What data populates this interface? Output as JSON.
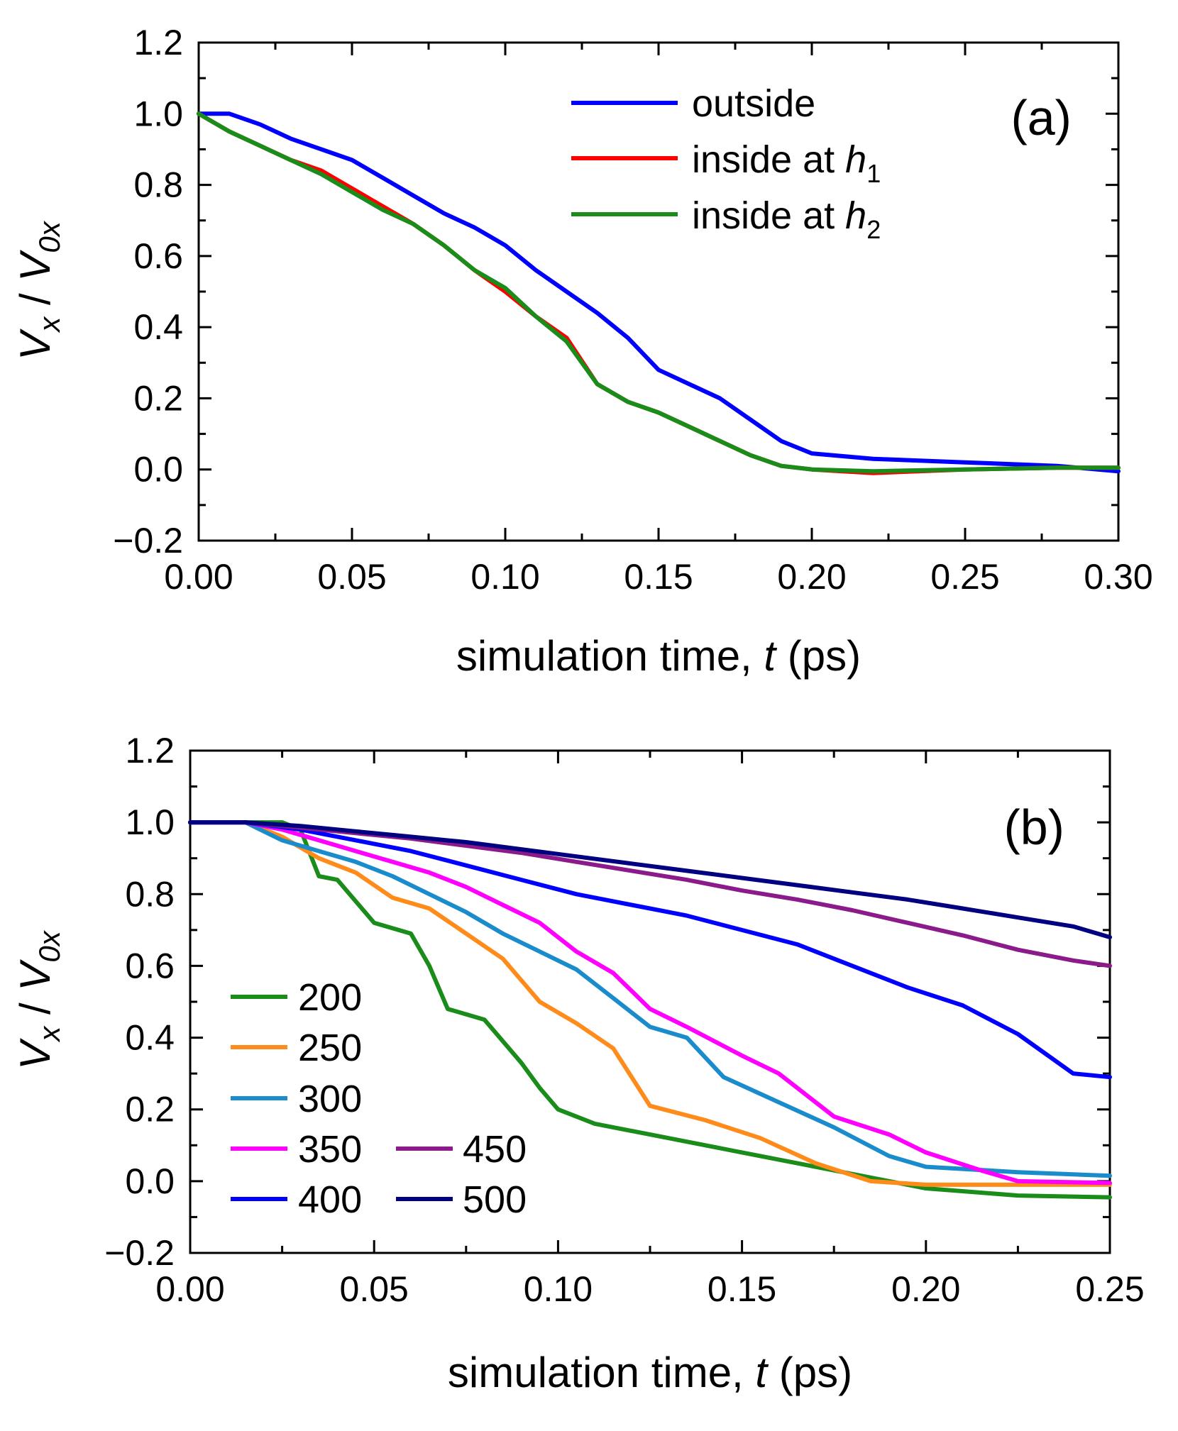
{
  "chart_data": [
    {
      "panel": "(a)",
      "type": "line",
      "xlabel_text": "simulation time, ",
      "xlabel_var": "t",
      "xlabel_unit": " (ps)",
      "ylabel": "Vx / V0x",
      "xlim": [
        0,
        0.3
      ],
      "ylim": [
        -0.2,
        1.2
      ],
      "xticks": [
        "0.00",
        "0.05",
        "0.10",
        "0.15",
        "0.20",
        "0.25",
        "0.30"
      ],
      "yticks": [
        "−0.2",
        "0.0",
        "0.2",
        "0.4",
        "0.6",
        "0.8",
        "1.0",
        "1.2"
      ],
      "legend_position": "top-right",
      "series": [
        {
          "name": "outside",
          "legend_text": "outside",
          "legend_var": "",
          "legend_sub": "",
          "color": "#0000ff",
          "x": [
            0,
            0.01,
            0.02,
            0.03,
            0.04,
            0.05,
            0.06,
            0.07,
            0.08,
            0.09,
            0.1,
            0.11,
            0.12,
            0.13,
            0.14,
            0.15,
            0.16,
            0.17,
            0.18,
            0.19,
            0.2,
            0.22,
            0.25,
            0.28,
            0.3
          ],
          "y": [
            1.0,
            1.0,
            0.97,
            0.93,
            0.9,
            0.87,
            0.82,
            0.77,
            0.72,
            0.68,
            0.63,
            0.56,
            0.5,
            0.44,
            0.37,
            0.28,
            0.24,
            0.2,
            0.14,
            0.08,
            0.045,
            0.03,
            0.02,
            0.01,
            -0.005
          ]
        },
        {
          "name": "inside at h1",
          "legend_text": "inside at ",
          "legend_var": "h",
          "legend_sub": "1",
          "color": "#ff0000",
          "x": [
            0,
            0.01,
            0.02,
            0.03,
            0.04,
            0.05,
            0.06,
            0.07,
            0.08,
            0.09,
            0.1,
            0.11,
            0.12,
            0.13,
            0.14,
            0.15,
            0.16,
            0.17,
            0.18,
            0.19,
            0.2,
            0.22,
            0.25,
            0.28,
            0.3
          ],
          "y": [
            1.0,
            0.95,
            0.91,
            0.87,
            0.84,
            0.79,
            0.74,
            0.69,
            0.63,
            0.56,
            0.5,
            0.43,
            0.37,
            0.24,
            0.19,
            0.16,
            0.12,
            0.08,
            0.04,
            0.01,
            0.0,
            -0.01,
            0.0,
            0.005,
            0.005
          ]
        },
        {
          "name": "inside at h2",
          "legend_text": "inside at ",
          "legend_var": "h",
          "legend_sub": "2",
          "color": "#1a8c1a",
          "x": [
            0,
            0.01,
            0.02,
            0.03,
            0.04,
            0.05,
            0.06,
            0.07,
            0.08,
            0.09,
            0.1,
            0.11,
            0.12,
            0.13,
            0.14,
            0.15,
            0.16,
            0.17,
            0.18,
            0.19,
            0.2,
            0.22,
            0.25,
            0.28,
            0.3
          ],
          "y": [
            1.0,
            0.95,
            0.91,
            0.87,
            0.83,
            0.78,
            0.73,
            0.69,
            0.63,
            0.56,
            0.51,
            0.43,
            0.36,
            0.24,
            0.19,
            0.16,
            0.12,
            0.08,
            0.04,
            0.01,
            0.0,
            -0.005,
            0.0,
            0.005,
            0.005
          ]
        }
      ]
    },
    {
      "panel": "(b)",
      "type": "line",
      "xlabel_text": "simulation time, ",
      "xlabel_var": "t",
      "xlabel_unit": " (ps)",
      "ylabel": "Vx / V0x",
      "xlim": [
        0,
        0.25
      ],
      "ylim": [
        -0.2,
        1.2
      ],
      "xticks": [
        "0.00",
        "0.05",
        "0.10",
        "0.15",
        "0.20",
        "0.25"
      ],
      "yticks": [
        "−0.2",
        "0.0",
        "0.2",
        "0.4",
        "0.6",
        "0.8",
        "1.0",
        "1.2"
      ],
      "legend_position": "bottom-left",
      "series": [
        {
          "name": "200",
          "color": "#1a8c1a",
          "x": [
            0,
            0.015,
            0.025,
            0.03,
            0.035,
            0.04,
            0.05,
            0.06,
            0.065,
            0.07,
            0.08,
            0.09,
            0.095,
            0.1,
            0.11,
            0.125,
            0.15,
            0.175,
            0.2,
            0.225,
            0.25
          ],
          "y": [
            1.0,
            1.0,
            1.0,
            0.98,
            0.85,
            0.84,
            0.72,
            0.69,
            0.6,
            0.48,
            0.45,
            0.33,
            0.26,
            0.2,
            0.16,
            0.13,
            0.08,
            0.03,
            -0.02,
            -0.04,
            -0.045
          ]
        },
        {
          "name": "250",
          "color": "#ff8c1a",
          "x": [
            0,
            0.015,
            0.025,
            0.035,
            0.045,
            0.055,
            0.065,
            0.075,
            0.085,
            0.095,
            0.105,
            0.115,
            0.125,
            0.14,
            0.155,
            0.17,
            0.185,
            0.2,
            0.225,
            0.25
          ],
          "y": [
            1.0,
            1.0,
            0.96,
            0.9,
            0.86,
            0.79,
            0.76,
            0.69,
            0.62,
            0.5,
            0.44,
            0.37,
            0.21,
            0.17,
            0.12,
            0.05,
            0.0,
            -0.01,
            -0.01,
            -0.01
          ]
        },
        {
          "name": "300",
          "color": "#1a8ccc",
          "x": [
            0,
            0.015,
            0.025,
            0.035,
            0.045,
            0.055,
            0.065,
            0.075,
            0.085,
            0.095,
            0.105,
            0.115,
            0.125,
            0.135,
            0.145,
            0.16,
            0.175,
            0.19,
            0.2,
            0.225,
            0.25
          ],
          "y": [
            1.0,
            1.0,
            0.95,
            0.92,
            0.89,
            0.85,
            0.8,
            0.75,
            0.69,
            0.64,
            0.59,
            0.51,
            0.43,
            0.4,
            0.29,
            0.22,
            0.15,
            0.07,
            0.04,
            0.025,
            0.015
          ]
        },
        {
          "name": "350",
          "color": "#ff00ff",
          "x": [
            0,
            0.015,
            0.025,
            0.035,
            0.045,
            0.055,
            0.065,
            0.075,
            0.085,
            0.095,
            0.105,
            0.115,
            0.125,
            0.135,
            0.15,
            0.16,
            0.175,
            0.19,
            0.2,
            0.215,
            0.225,
            0.25
          ],
          "y": [
            1.0,
            1.0,
            0.98,
            0.95,
            0.92,
            0.89,
            0.86,
            0.82,
            0.77,
            0.72,
            0.64,
            0.58,
            0.48,
            0.43,
            0.35,
            0.3,
            0.18,
            0.13,
            0.08,
            0.03,
            0.0,
            -0.005
          ]
        },
        {
          "name": "400",
          "color": "#0000ff",
          "x": [
            0,
            0.015,
            0.03,
            0.045,
            0.06,
            0.075,
            0.09,
            0.105,
            0.12,
            0.135,
            0.15,
            0.165,
            0.18,
            0.195,
            0.21,
            0.225,
            0.24,
            0.25
          ],
          "y": [
            1.0,
            1.0,
            0.98,
            0.95,
            0.92,
            0.88,
            0.84,
            0.8,
            0.77,
            0.74,
            0.7,
            0.66,
            0.6,
            0.54,
            0.49,
            0.41,
            0.3,
            0.29
          ]
        },
        {
          "name": "450",
          "color": "#8b1a8b",
          "x": [
            0,
            0.015,
            0.03,
            0.045,
            0.06,
            0.075,
            0.09,
            0.105,
            0.12,
            0.135,
            0.15,
            0.165,
            0.18,
            0.195,
            0.21,
            0.225,
            0.24,
            0.25
          ],
          "y": [
            1.0,
            1.0,
            0.985,
            0.97,
            0.955,
            0.935,
            0.915,
            0.89,
            0.865,
            0.84,
            0.81,
            0.785,
            0.755,
            0.72,
            0.685,
            0.645,
            0.615,
            0.6
          ]
        },
        {
          "name": "500",
          "color": "#000080",
          "x": [
            0,
            0.015,
            0.03,
            0.045,
            0.06,
            0.075,
            0.09,
            0.105,
            0.12,
            0.135,
            0.15,
            0.165,
            0.18,
            0.195,
            0.21,
            0.225,
            0.24,
            0.25
          ],
          "y": [
            1.0,
            1.0,
            0.99,
            0.975,
            0.96,
            0.945,
            0.925,
            0.905,
            0.885,
            0.865,
            0.845,
            0.825,
            0.805,
            0.785,
            0.76,
            0.735,
            0.71,
            0.68
          ]
        }
      ]
    }
  ]
}
